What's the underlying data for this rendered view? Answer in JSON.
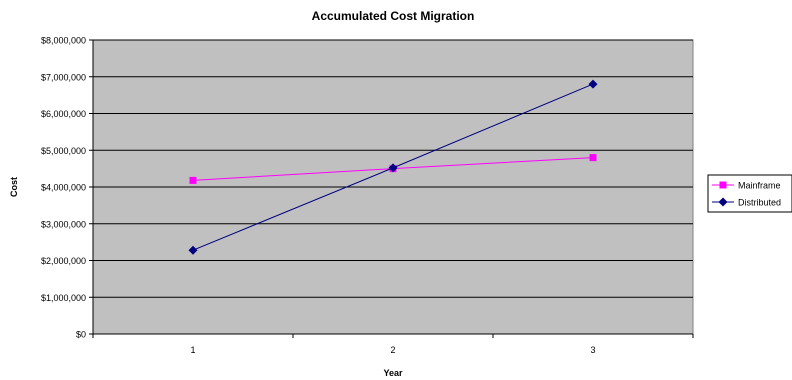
{
  "chart_data": {
    "type": "line",
    "title": "Accumulated Cost Migration",
    "xlabel": "Year",
    "ylabel": "Cost",
    "categories": [
      "1",
      "2",
      "3"
    ],
    "ylim": [
      0,
      8000000
    ],
    "ytick_labels": [
      "$0",
      "$1,000,000",
      "$2,000,000",
      "$3,000,000",
      "$4,000,000",
      "$5,000,000",
      "$6,000,000",
      "$7,000,000",
      "$8,000,000"
    ],
    "grid": true,
    "legend_position": "right",
    "plot_background": "#c0c0c0",
    "series": [
      {
        "name": "Mainframe",
        "values": [
          4180000,
          4500000,
          4800000
        ],
        "color": "#ff00ff",
        "marker": "square"
      },
      {
        "name": "Distributed",
        "values": [
          2280000,
          4520000,
          6800000
        ],
        "color": "#000080",
        "marker": "diamond"
      }
    ]
  }
}
